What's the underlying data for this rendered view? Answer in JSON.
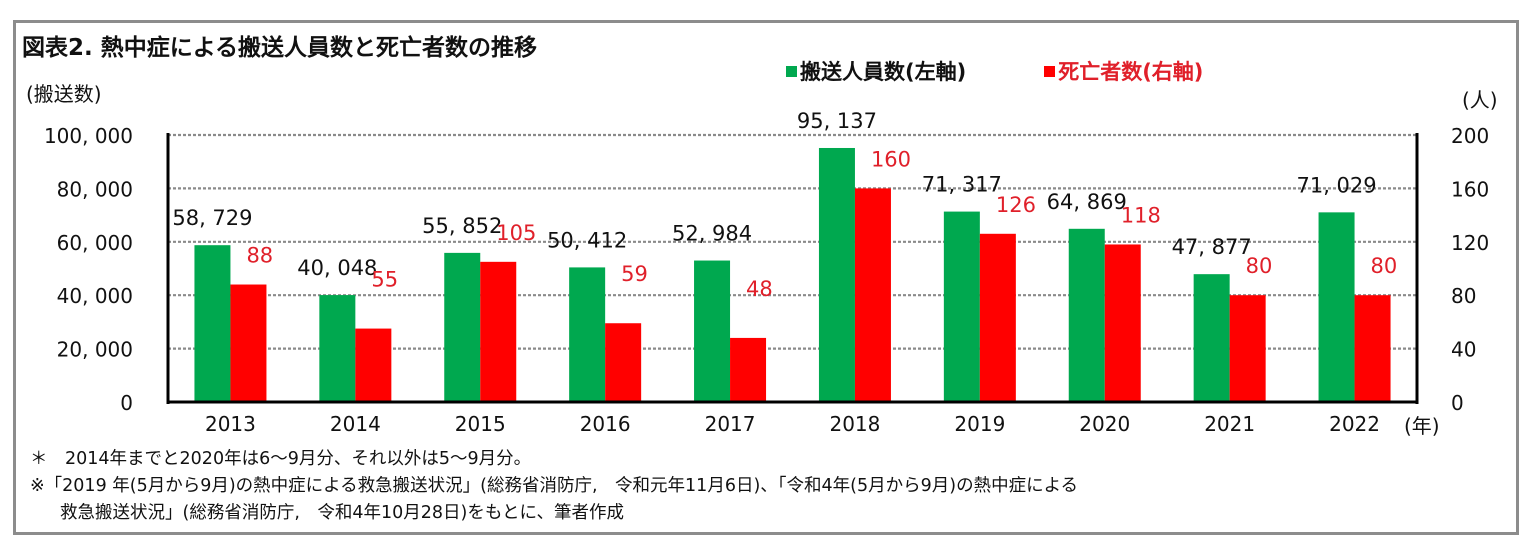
{
  "title": "図表2. 熱中症による搬送人員数と死亡者数の推移",
  "legend": {
    "transport": {
      "label": "搬送人員数(左軸)",
      "color": "#00a84f"
    },
    "deaths": {
      "label": "死亡者数(右軸)",
      "color": "#ff0000",
      "text_color": "#e0202a"
    }
  },
  "notes": [
    "＊　2014年までと2020年は6～9月分、それ以外は5～9月分。",
    "※「2019 年(5月から9月)の熱中症による救急搬送状況」(総務省消防庁,　令和元年11月6日)、「令和4年(5月から9月)の熱中症による",
    "救急搬送状況」(総務省消防庁,　令和4年10月28日)をもとに、筆者作成"
  ],
  "chart_data": {
    "type": "bar",
    "title": "図表2. 熱中症による搬送人員数と死亡者数の推移",
    "categories": [
      "2013",
      "2014",
      "2015",
      "2016",
      "2017",
      "2018",
      "2019",
      "2020",
      "2021",
      "2022"
    ],
    "xlabel": "(年)",
    "ylabel": "(搬送数)",
    "y2label": "(人)",
    "ylim": [
      0,
      100000
    ],
    "y2lim": [
      0,
      200
    ],
    "yticks": [
      "0",
      "20, 000",
      "40, 000",
      "60, 000",
      "80, 000",
      "100, 000"
    ],
    "y2ticks": [
      "0",
      "40",
      "80",
      "120",
      "160",
      "200"
    ],
    "grid": true,
    "legend_position": "top-right",
    "series": [
      {
        "name": "搬送人員数(左軸)",
        "axis": "left",
        "color": "#00a84f",
        "values": [
          58729,
          40048,
          55852,
          50412,
          52984,
          95137,
          71317,
          64869,
          47877,
          71029
        ],
        "labels": [
          "58, 729",
          "40, 048",
          "55, 852",
          "50, 412",
          "52, 984",
          "95, 137",
          "71, 317",
          "64, 869",
          "47, 877",
          "71, 029"
        ]
      },
      {
        "name": "死亡者数(右軸)",
        "axis": "right",
        "color": "#ff0000",
        "values": [
          88,
          55,
          105,
          59,
          48,
          160,
          126,
          118,
          80,
          80
        ],
        "labels": [
          "88",
          "55",
          "105",
          "59",
          "48",
          "160",
          "126",
          "118",
          "80",
          "80"
        ]
      }
    ]
  }
}
